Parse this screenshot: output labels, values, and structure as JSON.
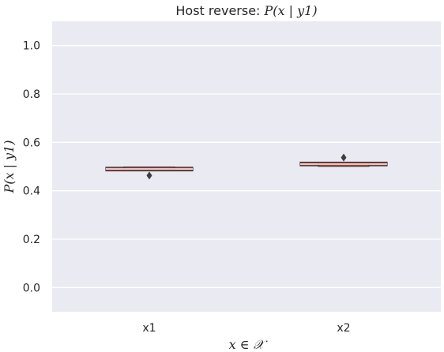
{
  "chart_data": {
    "type": "boxen",
    "title_prefix": "Host reverse: ",
    "title_math": "P(x | y1)",
    "xlabel": "x ∈ 𝒳",
    "ylabel": "P(x | y1)",
    "ylim": [
      -0.1,
      1.1
    ],
    "yticks": [
      0.0,
      0.2,
      0.4,
      0.6,
      0.8,
      1.0
    ],
    "ytick_labels": [
      "0.0",
      "0.2",
      "0.4",
      "0.6",
      "0.8",
      "1.0"
    ],
    "grid": true,
    "colors": {
      "background": "#eaeaf2",
      "grid": "#ffffff",
      "box": "#b03a36",
      "edge": "#3d3d3d"
    },
    "categories": [
      "x1",
      "x2"
    ],
    "boxes": [
      {
        "category": "x1",
        "low": 0.482,
        "high": 0.497,
        "median": 0.49,
        "inner_low": 0.489,
        "inner_high": 0.498,
        "outliers": [
          0.463
        ]
      },
      {
        "category": "x2",
        "low": 0.503,
        "high": 0.518,
        "median": 0.51,
        "inner_low": 0.501,
        "inner_high": 0.511,
        "outliers": [
          0.537
        ]
      }
    ]
  }
}
